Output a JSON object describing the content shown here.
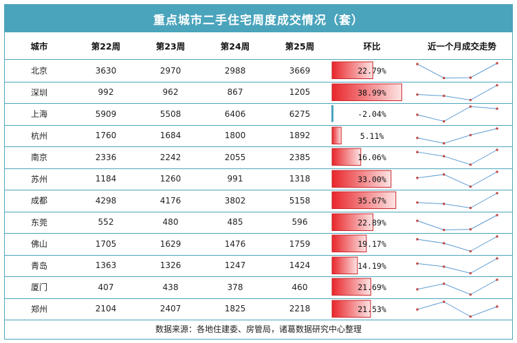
{
  "title": "重点城市二手住宅周度成交情况（套）",
  "headers": [
    "城市",
    "第22周",
    "第23周",
    "第24周",
    "第25周",
    "环比",
    "近一个月成交走势"
  ],
  "footer": "数据来源：各地住建委、房管局，诸葛数据研究中心整理",
  "colors": {
    "accent": "#4aa4bc",
    "bar_positive": "#e8262b",
    "bar_negative": "#4aa4bc",
    "sparkline": "#5b9bd5",
    "marker": "#c0504d"
  },
  "chart_data": {
    "type": "table",
    "columns": [
      "城市",
      "第22周",
      "第23周",
      "第24周",
      "第25周",
      "环比"
    ],
    "rows": [
      {
        "city": "北京",
        "w22": 3630,
        "w23": 2970,
        "w24": 2988,
        "w25": 3669,
        "change": "22.79%",
        "change_value": 22.79
      },
      {
        "city": "深圳",
        "w22": 992,
        "w23": 962,
        "w24": 867,
        "w25": 1205,
        "change": "38.99%",
        "change_value": 38.99
      },
      {
        "city": "上海",
        "w22": 5909,
        "w23": 5508,
        "w24": 6406,
        "w25": 6275,
        "change": "-2.04%",
        "change_value": -2.04
      },
      {
        "city": "杭州",
        "w22": 1760,
        "w23": 1684,
        "w24": 1800,
        "w25": 1892,
        "change": "5.11%",
        "change_value": 5.11
      },
      {
        "city": "南京",
        "w22": 2336,
        "w23": 2242,
        "w24": 2055,
        "w25": 2385,
        "change": "16.06%",
        "change_value": 16.06
      },
      {
        "city": "苏州",
        "w22": 1184,
        "w23": 1260,
        "w24": 991,
        "w25": 1318,
        "change": "33.00%",
        "change_value": 33.0
      },
      {
        "city": "成都",
        "w22": 4298,
        "w23": 4176,
        "w24": 3802,
        "w25": 5158,
        "change": "35.67%",
        "change_value": 35.67
      },
      {
        "city": "东莞",
        "w22": 552,
        "w23": 480,
        "w24": 485,
        "w25": 596,
        "change": "22.89%",
        "change_value": 22.89
      },
      {
        "city": "佛山",
        "w22": 1705,
        "w23": 1629,
        "w24": 1476,
        "w25": 1759,
        "change": "19.17%",
        "change_value": 19.17
      },
      {
        "city": "青岛",
        "w22": 1363,
        "w23": 1326,
        "w24": 1247,
        "w25": 1424,
        "change": "14.19%",
        "change_value": 14.19
      },
      {
        "city": "厦门",
        "w22": 407,
        "w23": 438,
        "w24": 378,
        "w25": 460,
        "change": "21.69%",
        "change_value": 21.69
      },
      {
        "city": "郑州",
        "w22": 2104,
        "w23": 2407,
        "w24": 1825,
        "w25": 2218,
        "change": "21.53%",
        "change_value": 21.53
      }
    ]
  }
}
